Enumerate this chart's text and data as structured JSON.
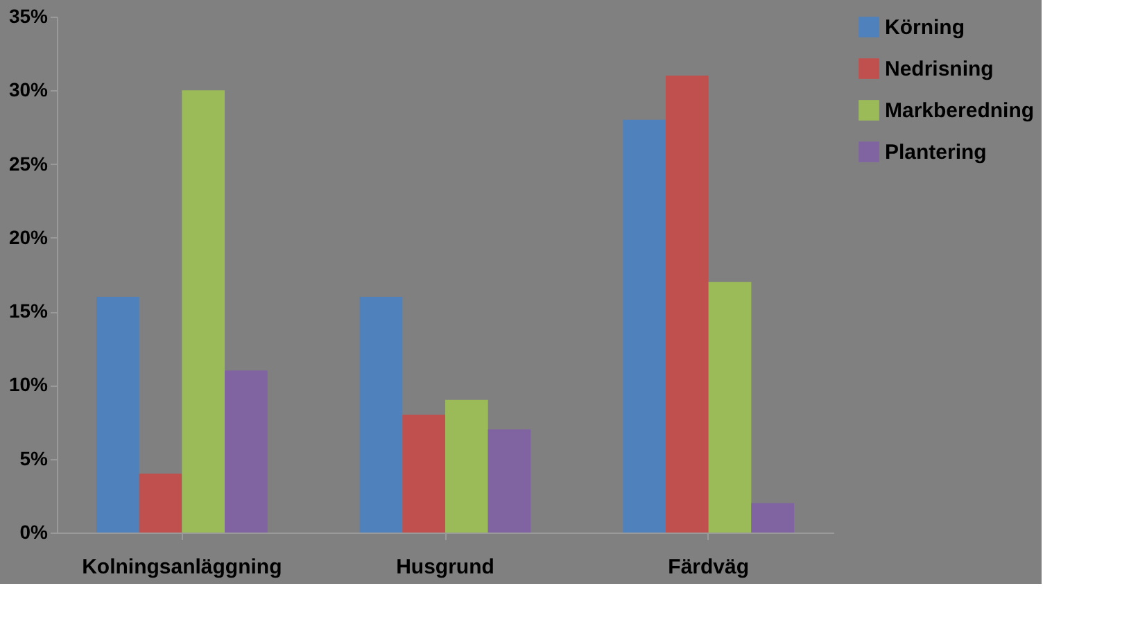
{
  "chart_data": {
    "type": "bar",
    "categories": [
      "Kolningsanläggning",
      "Husgrund",
      "Färdväg"
    ],
    "series": [
      {
        "name": "Körning",
        "color": "#4f81bd",
        "values": [
          16,
          16,
          28
        ]
      },
      {
        "name": "Nedrisning",
        "color": "#c0504d",
        "values": [
          4,
          8,
          31
        ]
      },
      {
        "name": "Markberedning",
        "color": "#9bbb59",
        "values": [
          30,
          9,
          17
        ]
      },
      {
        "name": "Plantering",
        "color": "#8064a2",
        "values": [
          11,
          7,
          2
        ]
      }
    ],
    "ylim": [
      0,
      35
    ],
    "yticks": [
      {
        "value": 0,
        "label": "0%"
      },
      {
        "value": 5,
        "label": "5%"
      },
      {
        "value": 10,
        "label": "10%"
      },
      {
        "value": 15,
        "label": "15%"
      },
      {
        "value": 20,
        "label": "20%"
      },
      {
        "value": 25,
        "label": "25%"
      },
      {
        "value": 30,
        "label": "30%"
      },
      {
        "value": 35,
        "label": "35%"
      }
    ],
    "grid": false,
    "legend": "right"
  }
}
